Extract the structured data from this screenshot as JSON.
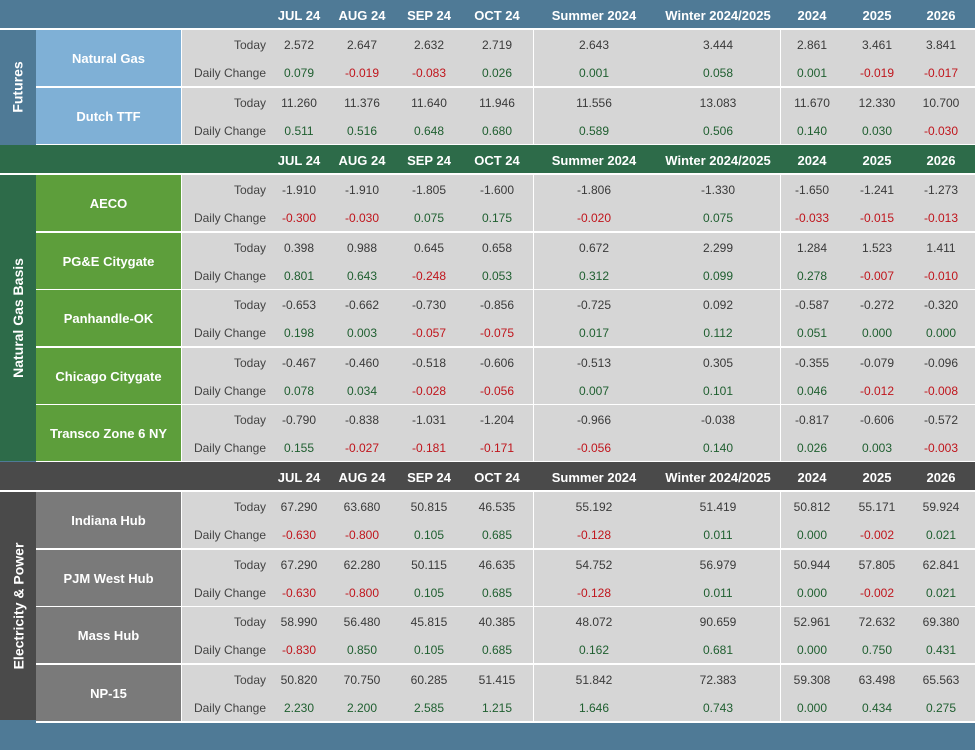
{
  "columns": [
    "JUL 24",
    "AUG 24",
    "SEP 24",
    "OCT 24",
    "Summer 2024",
    "Winter 2024/2025",
    "2024",
    "2025",
    "2026"
  ],
  "row_labels": {
    "today": "Today",
    "change": "Daily Change"
  },
  "sections": [
    {
      "title": "Futures",
      "color": "#4f7a96",
      "rows": [
        {
          "name": "Natural Gas",
          "today": [
            "2.572",
            "2.647",
            "2.632",
            "2.719",
            "2.643",
            "3.444",
            "2.861",
            "3.461",
            "3.841"
          ],
          "change": [
            "0.079",
            "-0.019",
            "-0.083",
            "0.026",
            "0.001",
            "0.058",
            "0.001",
            "-0.019",
            "-0.017"
          ]
        },
        {
          "name": "Dutch TTF",
          "today": [
            "11.260",
            "11.376",
            "11.640",
            "11.946",
            "11.556",
            "13.083",
            "11.670",
            "12.330",
            "10.700"
          ],
          "change": [
            "0.511",
            "0.516",
            "0.648",
            "0.680",
            "0.589",
            "0.506",
            "0.140",
            "0.030",
            "-0.030"
          ]
        }
      ]
    },
    {
      "title": "Natural Gas Basis",
      "color": "#2d6b49",
      "rows": [
        {
          "name": "AECO",
          "today": [
            "-1.910",
            "-1.910",
            "-1.805",
            "-1.600",
            "-1.806",
            "-1.330",
            "-1.650",
            "-1.241",
            "-1.273"
          ],
          "change": [
            "-0.300",
            "-0.030",
            "0.075",
            "0.175",
            "-0.020",
            "0.075",
            "-0.033",
            "-0.015",
            "-0.013"
          ]
        },
        {
          "name": "PG&E Citygate",
          "today": [
            "0.398",
            "0.988",
            "0.645",
            "0.658",
            "0.672",
            "2.299",
            "1.284",
            "1.523",
            "1.411"
          ],
          "change": [
            "0.801",
            "0.643",
            "-0.248",
            "0.053",
            "0.312",
            "0.099",
            "0.278",
            "-0.007",
            "-0.010"
          ]
        },
        {
          "name": "Panhandle-OK",
          "today": [
            "-0.653",
            "-0.662",
            "-0.730",
            "-0.856",
            "-0.725",
            "0.092",
            "-0.587",
            "-0.272",
            "-0.320"
          ],
          "change": [
            "0.198",
            "0.003",
            "-0.057",
            "-0.075",
            "0.017",
            "0.112",
            "0.051",
            "0.000",
            "0.000"
          ]
        },
        {
          "name": "Chicago Citygate",
          "today": [
            "-0.467",
            "-0.460",
            "-0.518",
            "-0.606",
            "-0.513",
            "0.305",
            "-0.355",
            "-0.079",
            "-0.096"
          ],
          "change": [
            "0.078",
            "0.034",
            "-0.028",
            "-0.056",
            "0.007",
            "0.101",
            "0.046",
            "-0.012",
            "-0.008"
          ]
        },
        {
          "name": "Transco Zone 6 NY",
          "today": [
            "-0.790",
            "-0.838",
            "-1.031",
            "-1.204",
            "-0.966",
            "-0.038",
            "-0.817",
            "-0.606",
            "-0.572"
          ],
          "change": [
            "0.155",
            "-0.027",
            "-0.181",
            "-0.171",
            "-0.056",
            "0.140",
            "0.026",
            "0.003",
            "-0.003"
          ]
        }
      ]
    },
    {
      "title": "Electricity & Power",
      "color": "#4a4a4a",
      "rows": [
        {
          "name": "Indiana Hub",
          "today": [
            "67.290",
            "63.680",
            "50.815",
            "46.535",
            "55.192",
            "51.419",
            "50.812",
            "55.171",
            "59.924"
          ],
          "change": [
            "-0.630",
            "-0.800",
            "0.105",
            "0.685",
            "-0.128",
            "0.011",
            "0.000",
            "-0.002",
            "0.021"
          ]
        },
        {
          "name": "PJM West Hub",
          "today": [
            "67.290",
            "62.280",
            "50.115",
            "46.635",
            "54.752",
            "56.979",
            "50.944",
            "57.805",
            "62.841"
          ],
          "change": [
            "-0.630",
            "-0.800",
            "0.105",
            "0.685",
            "-0.128",
            "0.011",
            "0.000",
            "-0.002",
            "0.021"
          ]
        },
        {
          "name": "Mass Hub",
          "today": [
            "58.990",
            "56.480",
            "45.815",
            "40.385",
            "48.072",
            "90.659",
            "52.961",
            "72.632",
            "69.380"
          ],
          "change": [
            "-0.830",
            "0.850",
            "0.105",
            "0.685",
            "0.162",
            "0.681",
            "0.000",
            "0.750",
            "0.431"
          ]
        },
        {
          "name": "NP-15",
          "today": [
            "50.820",
            "70.750",
            "60.285",
            "51.415",
            "51.842",
            "72.383",
            "59.308",
            "63.498",
            "65.563"
          ],
          "change": [
            "2.230",
            "2.200",
            "2.585",
            "1.215",
            "1.646",
            "0.743",
            "0.000",
            "0.434",
            "0.275"
          ]
        }
      ]
    }
  ]
}
